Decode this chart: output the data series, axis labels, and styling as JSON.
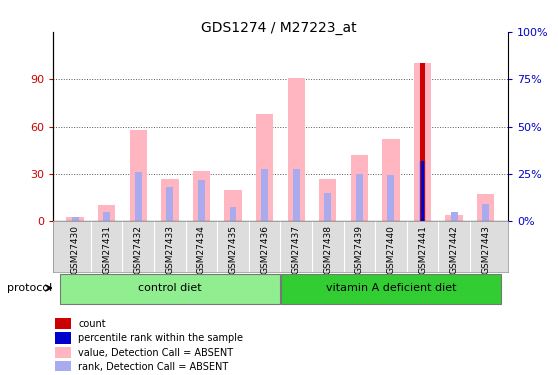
{
  "title": "GDS1274 / M27223_at",
  "samples": [
    "GSM27430",
    "GSM27431",
    "GSM27432",
    "GSM27433",
    "GSM27434",
    "GSM27435",
    "GSM27436",
    "GSM27437",
    "GSM27438",
    "GSM27439",
    "GSM27440",
    "GSM27441",
    "GSM27442",
    "GSM27443"
  ],
  "value_absent": [
    3,
    10,
    58,
    27,
    32,
    20,
    68,
    91,
    27,
    42,
    52,
    100,
    4,
    17
  ],
  "rank_absent": [
    3,
    6,
    31,
    22,
    26,
    9,
    33,
    33,
    18,
    30,
    29,
    38,
    6,
    11
  ],
  "count": [
    0,
    0,
    0,
    0,
    0,
    0,
    0,
    0,
    0,
    0,
    0,
    100,
    0,
    0
  ],
  "percentile_rank": [
    0,
    0,
    0,
    0,
    0,
    0,
    0,
    0,
    0,
    0,
    0,
    38,
    0,
    0
  ],
  "groups": {
    "control diet": [
      0,
      1,
      2,
      3,
      4,
      5,
      6
    ],
    "vitamin A deficient diet": [
      7,
      8,
      9,
      10,
      11,
      12,
      13
    ]
  },
  "ctrl_color": "#90EE90",
  "vita_color": "#32CD32",
  "ylim_left": [
    0,
    120
  ],
  "ylim_right": [
    0,
    100
  ],
  "left_yticks": [
    0,
    30,
    60,
    90
  ],
  "right_yticks": [
    0,
    25,
    50,
    75,
    100
  ],
  "right_yticklabels": [
    "0%",
    "25%",
    "50%",
    "75%",
    "100%"
  ],
  "value_absent_color": "#FFB6C1",
  "rank_absent_color": "#AAAAEE",
  "count_color": "#CC0000",
  "percentile_color": "#0000CC",
  "left_tick_color": "#CC0000",
  "right_tick_color": "#0000CC",
  "protocol_label": "protocol",
  "legend_items": [
    {
      "label": "count",
      "color": "#CC0000"
    },
    {
      "label": "percentile rank within the sample",
      "color": "#0000CC"
    },
    {
      "label": "value, Detection Call = ABSENT",
      "color": "#FFB6C1"
    },
    {
      "label": "rank, Detection Call = ABSENT",
      "color": "#AAAAEE"
    }
  ]
}
